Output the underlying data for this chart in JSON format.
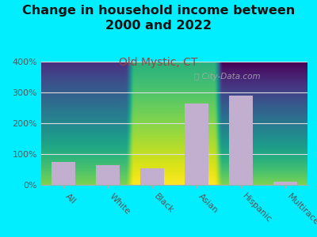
{
  "title": "Change in household income between\n2000 and 2022",
  "subtitle": "Old Mystic, CT",
  "categories": [
    "All",
    "White",
    "Black",
    "Asian",
    "Hispanic",
    "Multirace"
  ],
  "values": [
    75,
    65,
    55,
    263,
    290,
    10
  ],
  "bar_color": "#c2afd0",
  "title_fontsize": 11.5,
  "subtitle_fontsize": 10,
  "subtitle_color": "#994444",
  "background_color": "#00eeff",
  "ylim": [
    0,
    400
  ],
  "yticks": [
    0,
    100,
    200,
    300,
    400
  ],
  "watermark": "City-Data.com",
  "tick_label_color": "#555555",
  "grid_color": "#dddddd",
  "plot_bg_top_color": "#c8e6c0",
  "plot_bg_bottom_color": "#f0f8f0"
}
